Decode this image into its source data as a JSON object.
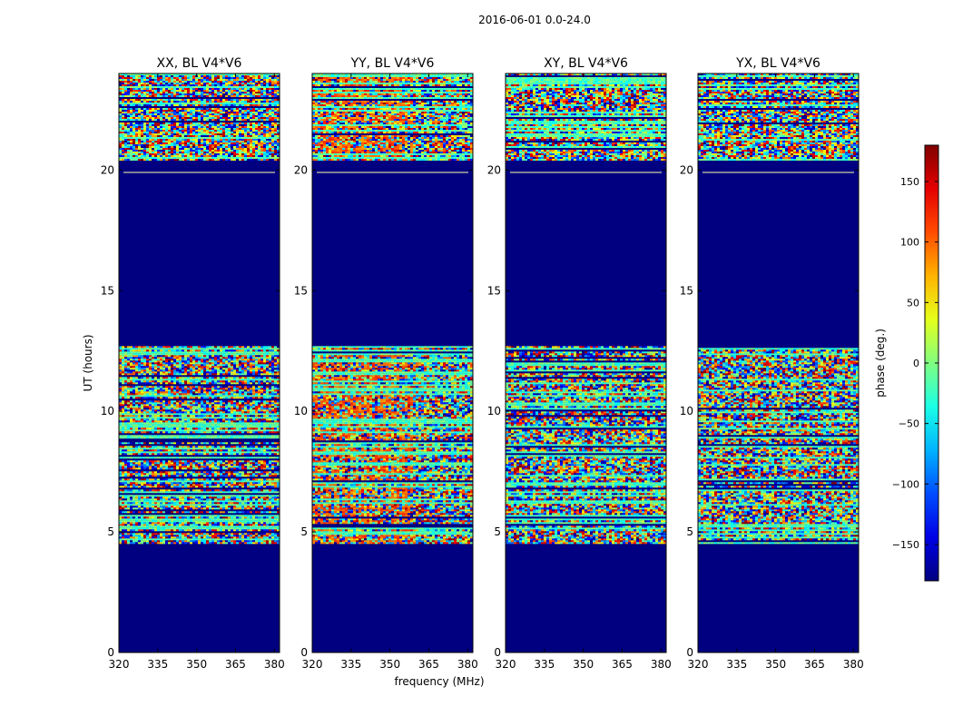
{
  "figure": {
    "suptitle": "2016-06-01 0.0-24.0"
  },
  "chart_data": {
    "type": "heatmap",
    "xlabel": "frequency (MHz)",
    "ylabel": "UT (hours)",
    "xlim": [
      320,
      382
    ],
    "ylim": [
      0,
      24
    ],
    "xticks": [
      "320",
      "335",
      "350",
      "365",
      "380"
    ],
    "yticks": [
      "0",
      "5",
      "10",
      "15",
      "20"
    ],
    "panels": [
      {
        "title": "XX, BL V4*V6"
      },
      {
        "title": "YY, BL V4*V6"
      },
      {
        "title": "XY, BL V4*V6"
      },
      {
        "title": "YX, BL V4*V6"
      }
    ],
    "colorbar": {
      "label": "phase (deg.)",
      "range": [
        -180,
        180
      ],
      "ticks": [
        "150",
        "100",
        "50",
        "0",
        "−50",
        "−100",
        "−150"
      ],
      "colormap": "jet"
    },
    "data_hours": [
      [
        4.5,
        12.7
      ],
      [
        20.4,
        24.0
      ]
    ],
    "empty_value": -180
  },
  "colors": {
    "background": "#000080",
    "axis": "#000000"
  }
}
